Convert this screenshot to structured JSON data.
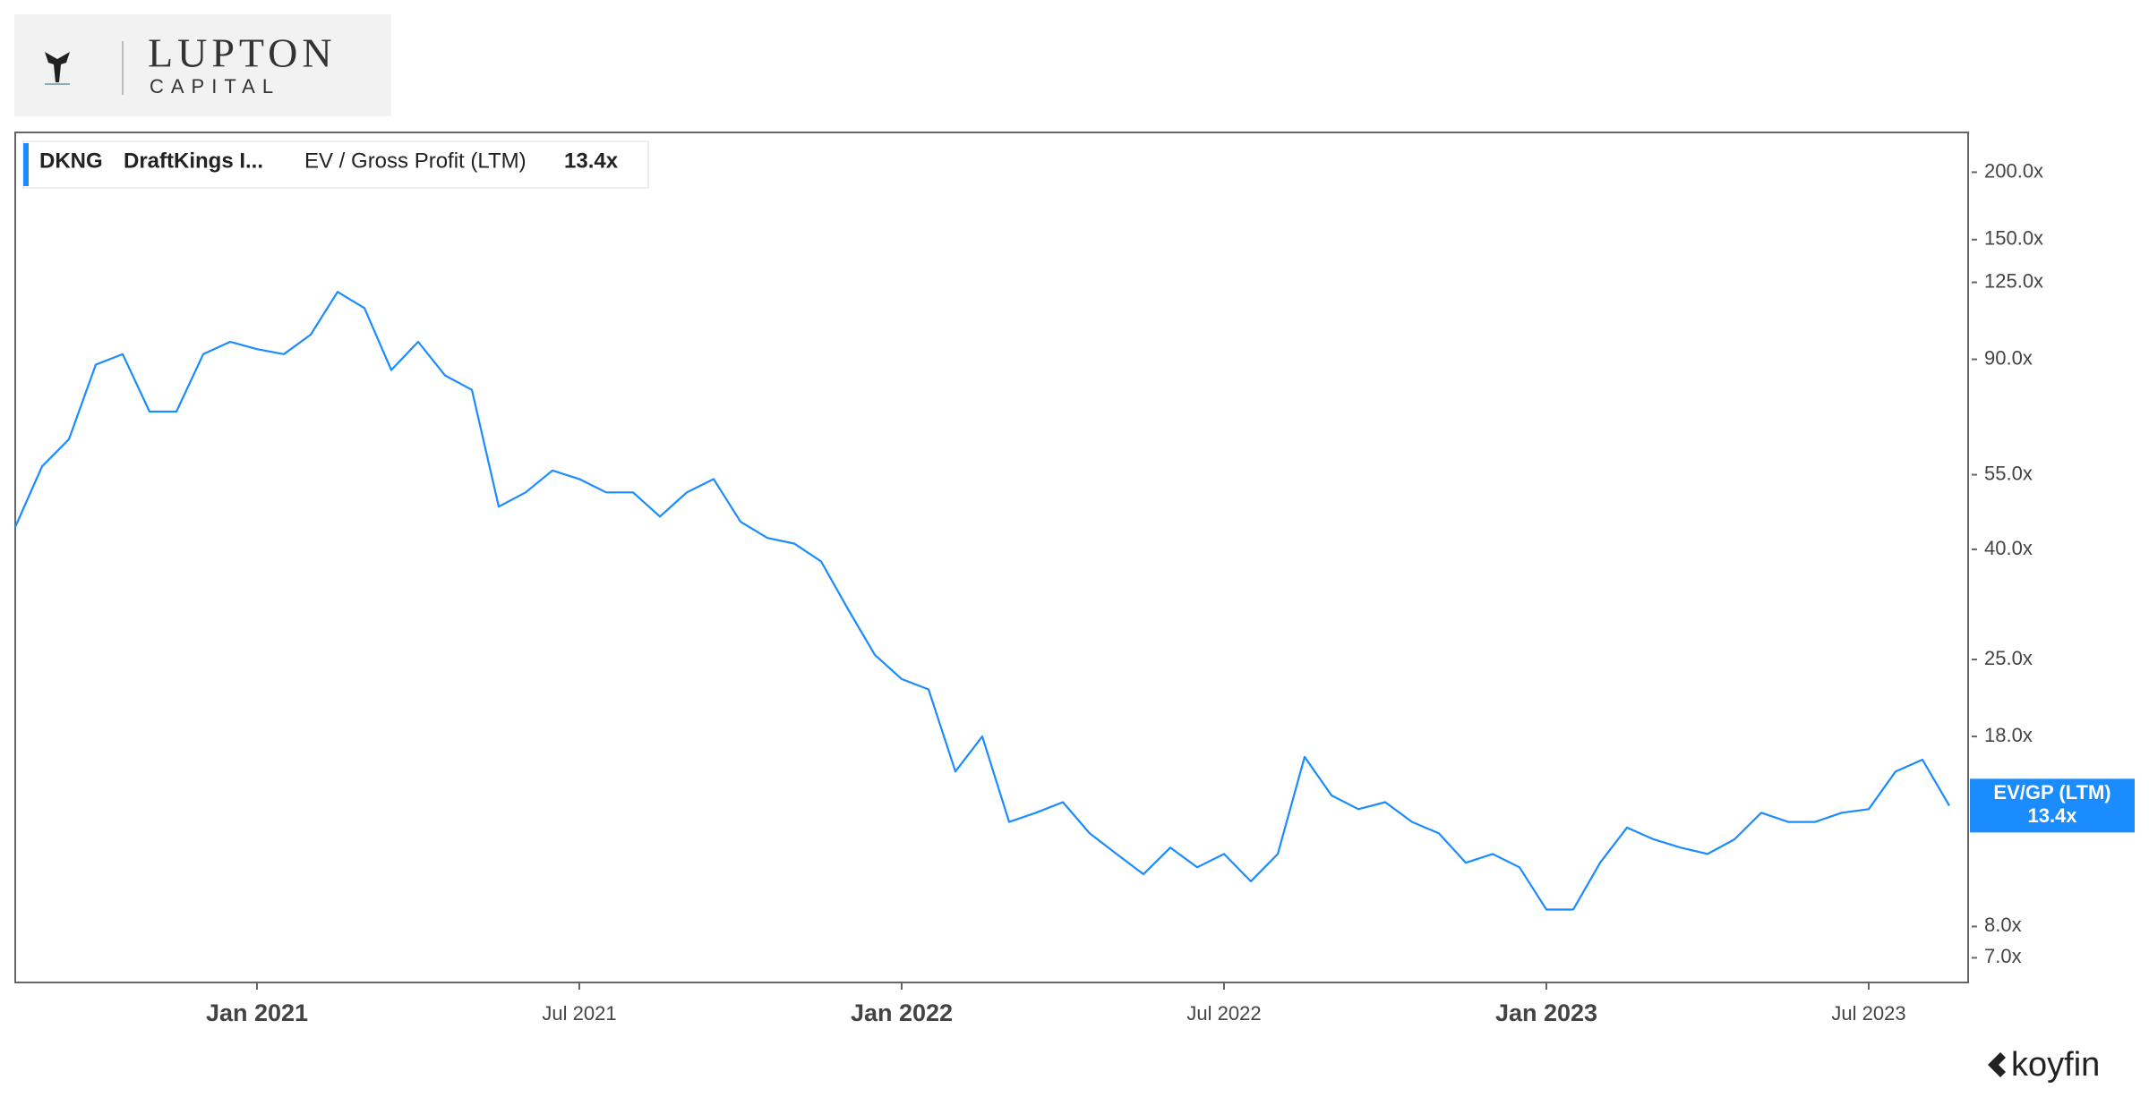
{
  "logo": {
    "name": "LUPTON",
    "sub": "CAPITAL"
  },
  "footer": "koyfin",
  "chart_data": {
    "type": "line",
    "log_scale": true,
    "legend": {
      "ticker": "DKNG",
      "name": "DraftKings I...",
      "metric": "EV / Gross Profit (LTM)",
      "value": "13.4x"
    },
    "last_label": {
      "name": "EV/GP (LTM)",
      "value": "13.4x"
    },
    "categories": [
      null,
      null,
      null,
      null,
      null,
      null,
      null,
      null,
      null,
      "Jan 2021",
      null,
      null,
      null,
      null,
      null,
      null,
      null,
      null,
      null,
      null,
      null,
      "Jul 2021",
      null,
      null,
      null,
      null,
      null,
      null,
      null,
      null,
      null,
      null,
      null,
      "Jan 2022",
      null,
      null,
      null,
      null,
      null,
      null,
      null,
      null,
      null,
      null,
      null,
      "Jul 2022",
      null,
      null,
      null,
      null,
      null,
      null,
      null,
      null,
      null,
      null,
      null,
      "Jan 2023",
      null,
      null,
      null,
      null,
      null,
      null,
      null,
      null,
      null,
      null,
      null,
      "Jul 2023",
      null,
      null,
      null
    ],
    "series": [
      {
        "name": "DKNG",
        "color": "#1a8cff",
        "values": [
          44,
          57,
          64,
          88,
          92,
          72,
          72,
          92,
          97,
          94,
          92,
          100,
          120,
          112,
          86,
          97,
          84,
          79,
          48,
          51,
          56,
          54,
          51,
          51,
          46,
          51,
          54,
          45,
          42,
          41,
          38,
          31,
          25.5,
          23,
          22,
          15.5,
          18,
          12.5,
          13,
          13.6,
          11.9,
          10.9,
          10,
          11.2,
          10.3,
          10.9,
          9.7,
          10.9,
          16.5,
          14,
          13.2,
          13.6,
          12.5,
          11.9,
          10.5,
          10.9,
          10.3,
          8.6,
          8.6,
          10.5,
          12.2,
          11.6,
          11.2,
          10.9,
          11.6,
          13,
          12.5,
          12.5,
          13,
          13.2,
          15.5,
          16.3,
          13.4
        ]
      }
    ],
    "ylim": [
      6.3,
      237
    ],
    "yticks": [
      {
        "value": 200,
        "label": "200.0x"
      },
      {
        "value": 150,
        "label": "150.0x"
      },
      {
        "value": 125,
        "label": "125.0x"
      },
      {
        "value": 90,
        "label": "90.0x"
      },
      {
        "value": 55,
        "label": "55.0x"
      },
      {
        "value": 40,
        "label": "40.0x"
      },
      {
        "value": 25,
        "label": "25.0x"
      },
      {
        "value": 18,
        "label": "18.0x"
      },
      {
        "value": 8,
        "label": "8.0x"
      },
      {
        "value": 7,
        "label": "7.0x"
      }
    ]
  }
}
